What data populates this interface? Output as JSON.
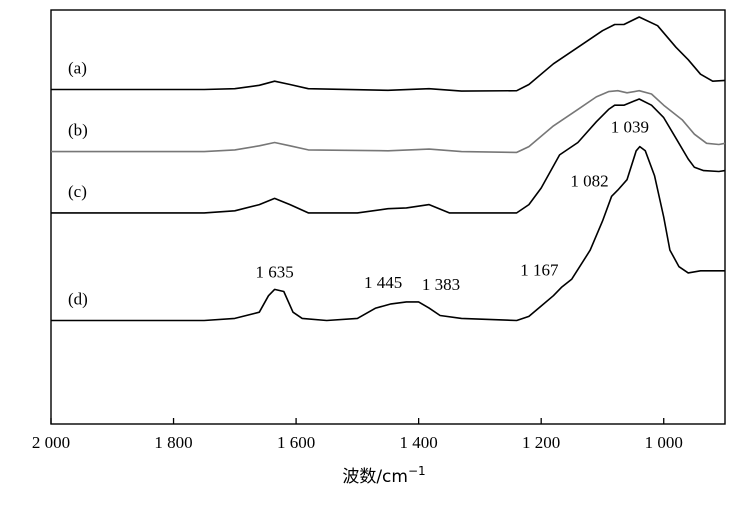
{
  "chart_data": {
    "type": "line",
    "title": "",
    "xlabel": "波数/cm",
    "xlabel_sup": "−1",
    "ylabel": "",
    "xlim": [
      2000,
      900
    ],
    "x_reversed": true,
    "ylim": [
      0,
      1
    ],
    "grid": false,
    "legend": "none",
    "x_ticks": [
      {
        "value": 2000,
        "label": "2 000"
      },
      {
        "value": 1800,
        "label": "1 800"
      },
      {
        "value": 1600,
        "label": "1 600"
      },
      {
        "value": 1400,
        "label": "1 400"
      },
      {
        "value": 1200,
        "label": "1 200"
      },
      {
        "value": 1000,
        "label": "1 000"
      }
    ],
    "series": [
      {
        "name": "(a)",
        "color": "#000000",
        "points": [
          [
            2000,
            0.808
          ],
          [
            1750,
            0.808
          ],
          [
            1700,
            0.81
          ],
          [
            1660,
            0.818
          ],
          [
            1635,
            0.828
          ],
          [
            1610,
            0.82
          ],
          [
            1580,
            0.81
          ],
          [
            1450,
            0.806
          ],
          [
            1383,
            0.81
          ],
          [
            1330,
            0.804
          ],
          [
            1240,
            0.805
          ],
          [
            1220,
            0.82
          ],
          [
            1180,
            0.87
          ],
          [
            1140,
            0.91
          ],
          [
            1100,
            0.95
          ],
          [
            1080,
            0.965
          ],
          [
            1065,
            0.965
          ],
          [
            1040,
            0.983
          ],
          [
            1010,
            0.962
          ],
          [
            980,
            0.91
          ],
          [
            960,
            0.88
          ],
          [
            940,
            0.845
          ],
          [
            920,
            0.828
          ],
          [
            900,
            0.83
          ]
        ]
      },
      {
        "name": "(b)",
        "color": "#777777",
        "points": [
          [
            2000,
            0.658
          ],
          [
            1750,
            0.658
          ],
          [
            1700,
            0.662
          ],
          [
            1660,
            0.672
          ],
          [
            1635,
            0.68
          ],
          [
            1610,
            0.672
          ],
          [
            1580,
            0.662
          ],
          [
            1450,
            0.66
          ],
          [
            1383,
            0.664
          ],
          [
            1330,
            0.658
          ],
          [
            1240,
            0.656
          ],
          [
            1220,
            0.67
          ],
          [
            1180,
            0.72
          ],
          [
            1140,
            0.76
          ],
          [
            1110,
            0.79
          ],
          [
            1090,
            0.803
          ],
          [
            1075,
            0.805
          ],
          [
            1060,
            0.8
          ],
          [
            1040,
            0.805
          ],
          [
            1020,
            0.797
          ],
          [
            1000,
            0.77
          ],
          [
            970,
            0.735
          ],
          [
            950,
            0.7
          ],
          [
            930,
            0.678
          ],
          [
            910,
            0.675
          ],
          [
            900,
            0.678
          ]
        ]
      },
      {
        "name": "(c)",
        "color": "#000000",
        "points": [
          [
            2000,
            0.51
          ],
          [
            1750,
            0.51
          ],
          [
            1700,
            0.515
          ],
          [
            1660,
            0.53
          ],
          [
            1635,
            0.545
          ],
          [
            1610,
            0.53
          ],
          [
            1580,
            0.51
          ],
          [
            1500,
            0.51
          ],
          [
            1450,
            0.52
          ],
          [
            1420,
            0.522
          ],
          [
            1383,
            0.53
          ],
          [
            1350,
            0.51
          ],
          [
            1240,
            0.51
          ],
          [
            1220,
            0.53
          ],
          [
            1200,
            0.57
          ],
          [
            1170,
            0.65
          ],
          [
            1140,
            0.68
          ],
          [
            1110,
            0.73
          ],
          [
            1090,
            0.76
          ],
          [
            1080,
            0.77
          ],
          [
            1065,
            0.77
          ],
          [
            1040,
            0.785
          ],
          [
            1020,
            0.77
          ],
          [
            1000,
            0.74
          ],
          [
            980,
            0.69
          ],
          [
            960,
            0.64
          ],
          [
            950,
            0.62
          ],
          [
            935,
            0.612
          ],
          [
            910,
            0.61
          ],
          [
            900,
            0.612
          ]
        ]
      },
      {
        "name": "(d)",
        "color": "#000000",
        "points": [
          [
            2000,
            0.25
          ],
          [
            1750,
            0.25
          ],
          [
            1700,
            0.255
          ],
          [
            1660,
            0.27
          ],
          [
            1645,
            0.31
          ],
          [
            1635,
            0.325
          ],
          [
            1620,
            0.32
          ],
          [
            1605,
            0.27
          ],
          [
            1590,
            0.255
          ],
          [
            1550,
            0.25
          ],
          [
            1500,
            0.255
          ],
          [
            1470,
            0.28
          ],
          [
            1445,
            0.29
          ],
          [
            1420,
            0.295
          ],
          [
            1400,
            0.295
          ],
          [
            1383,
            0.28
          ],
          [
            1365,
            0.262
          ],
          [
            1330,
            0.255
          ],
          [
            1240,
            0.25
          ],
          [
            1220,
            0.26
          ],
          [
            1200,
            0.285
          ],
          [
            1180,
            0.31
          ],
          [
            1167,
            0.33
          ],
          [
            1150,
            0.35
          ],
          [
            1120,
            0.42
          ],
          [
            1100,
            0.49
          ],
          [
            1085,
            0.55
          ],
          [
            1075,
            0.565
          ],
          [
            1060,
            0.59
          ],
          [
            1045,
            0.66
          ],
          [
            1039,
            0.67
          ],
          [
            1030,
            0.66
          ],
          [
            1015,
            0.6
          ],
          [
            1000,
            0.5
          ],
          [
            990,
            0.42
          ],
          [
            975,
            0.38
          ],
          [
            960,
            0.365
          ],
          [
            940,
            0.37
          ],
          [
            920,
            0.37
          ],
          [
            900,
            0.37
          ]
        ]
      }
    ],
    "curve_labels": [
      {
        "text": "(a)",
        "series": 0
      },
      {
        "text": "(b)",
        "series": 1
      },
      {
        "text": "(c)",
        "series": 2
      },
      {
        "text": "(d)",
        "series": 3
      }
    ],
    "annotations": [
      {
        "text": "1 635",
        "x": 1635
      },
      {
        "text": "1 445",
        "x": 1445
      },
      {
        "text": "1 383",
        "x": 1383
      },
      {
        "text": "1 167",
        "x": 1167
      },
      {
        "text": "1 082",
        "x": 1082
      },
      {
        "text": "1 039",
        "x": 1039
      }
    ]
  }
}
